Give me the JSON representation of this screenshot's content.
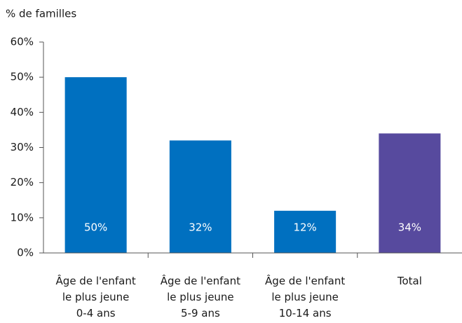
{
  "chart_data": {
    "type": "bar",
    "y_axis_label": "% de familles",
    "categories": [
      "Âge de l'enfant\nle plus jeune\n0-4 ans",
      "Âge de l'enfant\nle plus jeune\n5-9 ans",
      "Âge de l'enfant\nle plus jeune\n10-14 ans",
      "Total"
    ],
    "values": [
      50,
      32,
      12,
      34
    ],
    "value_labels": [
      "50%",
      "32%",
      "12%",
      "34%"
    ],
    "colors": [
      "#0070c0",
      "#0070c0",
      "#0070c0",
      "#574a9e"
    ],
    "ylim": [
      0,
      60
    ],
    "yticks": [
      {
        "value": 0,
        "label": "0%"
      },
      {
        "value": 10,
        "label": "10%"
      },
      {
        "value": 20,
        "label": "20%"
      },
      {
        "value": 30,
        "label": "30%"
      },
      {
        "value": 40,
        "label": "40%"
      },
      {
        "value": 50,
        "label": "50%"
      },
      {
        "value": 60,
        "label": "60%"
      }
    ],
    "grid": false
  }
}
